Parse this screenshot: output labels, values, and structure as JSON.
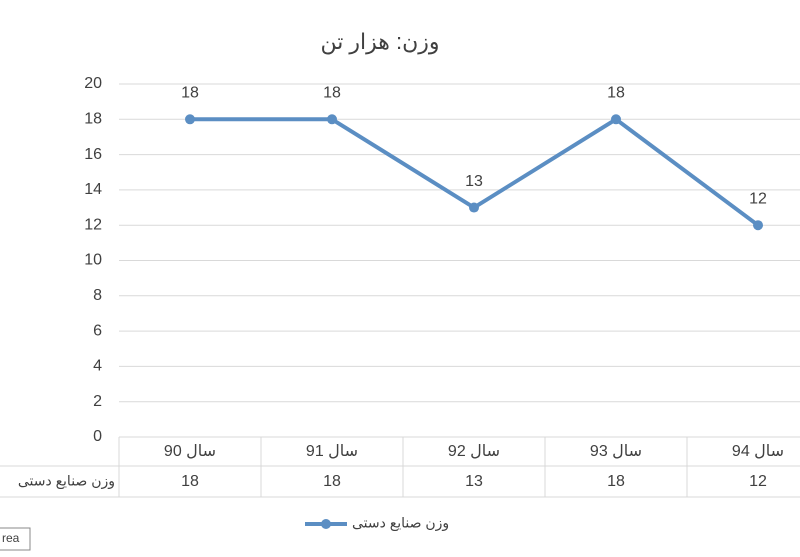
{
  "chart_data": {
    "type": "line",
    "title": "وزن: هزار تن",
    "categories": [
      "سال 90",
      "سال 91",
      "سال 92",
      "سال 93",
      "سال 94"
    ],
    "series": [
      {
        "name": "وزن صنایع دستی",
        "color": "#5b8ec3",
        "values": [
          18,
          18,
          13,
          18,
          12
        ]
      }
    ],
    "ylim": [
      0,
      20
    ],
    "yticks": [
      0,
      2,
      4,
      6,
      8,
      10,
      12,
      14,
      16,
      18,
      20
    ],
    "grid": true,
    "data_table": true,
    "data_labels": true,
    "legend": "bottom",
    "tooltip": "rea"
  }
}
